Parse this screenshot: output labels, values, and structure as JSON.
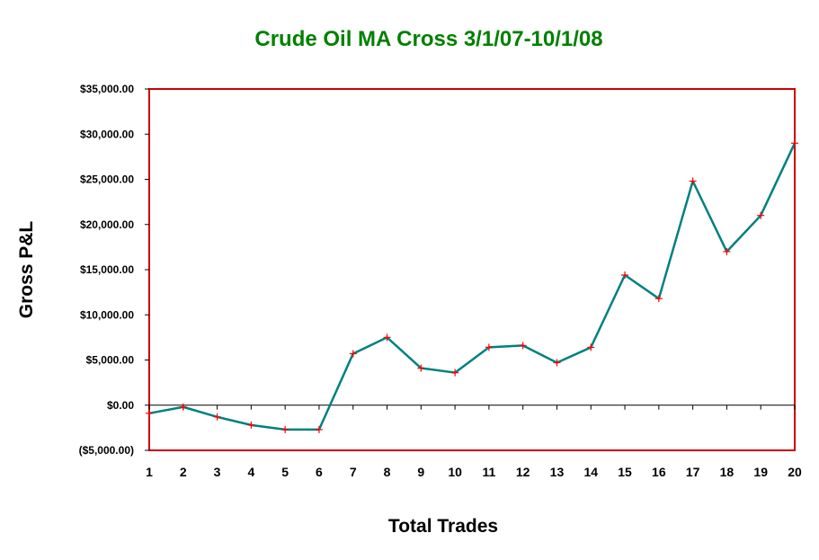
{
  "colors": {
    "title": "#008000",
    "plot_border": "#cc0000",
    "line": "#008080",
    "marker": "#ff0000",
    "negative_label": "#cc0000",
    "axis": "#000000"
  },
  "chart_data": {
    "type": "line",
    "title": "Crude Oil MA Cross 3/1/07-10/1/08",
    "xlabel": "Total Trades",
    "ylabel": "Gross P&L",
    "ylim": [
      -5000,
      35000
    ],
    "grid": false,
    "marker": "plus",
    "x": [
      1,
      2,
      3,
      4,
      5,
      6,
      7,
      8,
      9,
      10,
      11,
      12,
      13,
      14,
      15,
      16,
      17,
      18,
      19,
      20
    ],
    "values": [
      -900,
      -200,
      -1300,
      -2200,
      -2700,
      -2700,
      5700,
      7500,
      4100,
      3600,
      6400,
      6600,
      4700,
      6400,
      14400,
      11800,
      24800,
      17000,
      21000,
      29000
    ],
    "y_ticks": [
      {
        "value": 35000,
        "label": "$35,000.00"
      },
      {
        "value": 30000,
        "label": "$30,000.00"
      },
      {
        "value": 25000,
        "label": "$25,000.00"
      },
      {
        "value": 20000,
        "label": "$20,000.00"
      },
      {
        "value": 15000,
        "label": "$15,000.00"
      },
      {
        "value": 10000,
        "label": "$10,000.00"
      },
      {
        "value": 5000,
        "label": "$5,000.00"
      },
      {
        "value": 0,
        "label": "$0.00"
      },
      {
        "value": -5000,
        "label": "($5,000.00)"
      }
    ],
    "x_tick_labels": [
      "1",
      "2",
      "3",
      "4",
      "5",
      "6",
      "7",
      "8",
      "9",
      "10",
      "11",
      "12",
      "13",
      "14",
      "15",
      "16",
      "17",
      "18",
      "19",
      "20"
    ]
  }
}
